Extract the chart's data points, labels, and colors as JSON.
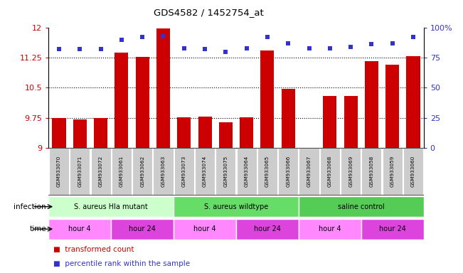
{
  "title": "GDS4582 / 1452754_at",
  "samples": [
    "GSM933070",
    "GSM933071",
    "GSM933072",
    "GSM933061",
    "GSM933062",
    "GSM933063",
    "GSM933073",
    "GSM933074",
    "GSM933075",
    "GSM933064",
    "GSM933065",
    "GSM933066",
    "GSM933067",
    "GSM933068",
    "GSM933069",
    "GSM933058",
    "GSM933059",
    "GSM933060"
  ],
  "transformed_count": [
    9.75,
    9.7,
    9.75,
    11.38,
    11.27,
    11.98,
    9.76,
    9.78,
    9.63,
    9.76,
    11.42,
    10.47,
    9.0,
    10.29,
    10.3,
    11.17,
    11.08,
    11.28
  ],
  "percentile_rank": [
    82,
    82,
    82,
    90,
    92,
    93,
    83,
    82,
    80,
    83,
    92,
    87,
    83,
    83,
    84,
    86,
    87,
    92
  ],
  "ylim_left": [
    9,
    12
  ],
  "ylim_right": [
    0,
    100
  ],
  "yticks_left": [
    9,
    9.75,
    10.5,
    11.25,
    12
  ],
  "yticks_right": [
    0,
    25,
    50,
    75,
    100
  ],
  "bar_color": "#cc0000",
  "dot_color": "#3333cc",
  "groups": [
    {
      "label": "S. aureus Hla mutant",
      "start": 0,
      "end": 6,
      "color": "#ccffcc"
    },
    {
      "label": "S. aureus wildtype",
      "start": 6,
      "end": 12,
      "color": "#66dd66"
    },
    {
      "label": "saline control",
      "start": 12,
      "end": 18,
      "color": "#55cc55"
    }
  ],
  "time_groups": [
    {
      "label": "hour 4",
      "start": 0,
      "end": 3,
      "color": "#ff88ff"
    },
    {
      "label": "hour 24",
      "start": 3,
      "end": 6,
      "color": "#dd44dd"
    },
    {
      "label": "hour 4",
      "start": 6,
      "end": 9,
      "color": "#ff88ff"
    },
    {
      "label": "hour 24",
      "start": 9,
      "end": 12,
      "color": "#dd44dd"
    },
    {
      "label": "hour 4",
      "start": 12,
      "end": 15,
      "color": "#ff88ff"
    },
    {
      "label": "hour 24",
      "start": 15,
      "end": 18,
      "color": "#dd44dd"
    }
  ],
  "infection_label": "infection",
  "time_label": "time",
  "legend_items": [
    {
      "label": "transformed count",
      "color": "#cc0000"
    },
    {
      "label": "percentile rank within the sample",
      "color": "#3333cc"
    }
  ],
  "bg_color": "#ffffff",
  "tick_label_color_left": "#cc0000",
  "tick_label_color_right": "#3333cc",
  "sample_box_color": "#cccccc"
}
